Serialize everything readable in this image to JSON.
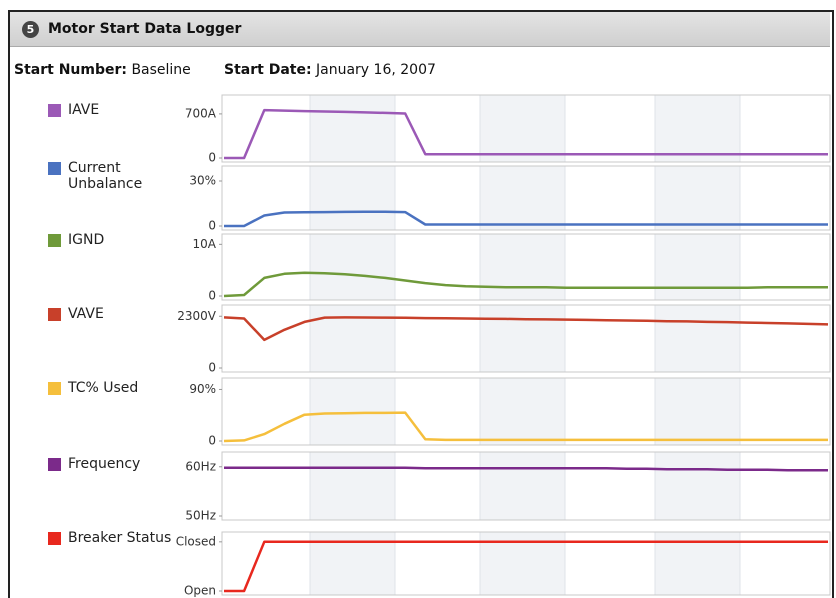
{
  "header": {
    "badge": "5",
    "title": "Motor Start Data Logger",
    "start_number_label": "Start Number:",
    "start_number": "Baseline",
    "start_date_label": "Start Date:",
    "start_date": "January 16, 2007"
  },
  "chart_data": [
    {
      "type": "line",
      "series": [
        {
          "name": "IAVE",
          "color": "#9b59b6",
          "values": [
            0,
            0,
            760,
            752,
            745,
            738,
            731,
            724,
            716,
            706,
            60,
            60,
            60,
            60,
            60,
            60,
            60,
            60,
            60,
            60,
            60,
            60,
            60,
            60,
            60,
            60,
            60,
            60,
            60,
            60,
            60
          ]
        }
      ],
      "ylim": [
        0,
        1000
      ],
      "yticks": [
        0,
        {
          "value": 700,
          "label": "700A"
        }
      ]
    },
    {
      "type": "line",
      "series": [
        {
          "name": "Current Unbalance",
          "color": "#4a72c0",
          "values": [
            0,
            0,
            7,
            9,
            9.2,
            9.3,
            9.4,
            9.5,
            9.5,
            9.3,
            1,
            1,
            1,
            1,
            1,
            1,
            1,
            1,
            1,
            1,
            1,
            1,
            1,
            1,
            1,
            1,
            1,
            1,
            1,
            1,
            1
          ]
        }
      ],
      "ylim": [
        0,
        40
      ],
      "yticks": [
        0,
        {
          "value": 30,
          "label": "30%"
        }
      ]
    },
    {
      "type": "line",
      "series": [
        {
          "name": "IGND",
          "color": "#6f9a3a",
          "values": [
            0,
            0.2,
            3.5,
            4.3,
            4.5,
            4.4,
            4.2,
            3.9,
            3.5,
            3.0,
            2.5,
            2.1,
            1.9,
            1.8,
            1.7,
            1.7,
            1.7,
            1.6,
            1.6,
            1.6,
            1.6,
            1.6,
            1.6,
            1.6,
            1.6,
            1.6,
            1.6,
            1.7,
            1.7,
            1.7,
            1.7
          ]
        }
      ],
      "ylim": [
        0,
        12
      ],
      "yticks": [
        0,
        {
          "value": 10,
          "label": "10A"
        }
      ]
    },
    {
      "type": "line",
      "series": [
        {
          "name": "VAVE",
          "color": "#c8402a",
          "values": [
            2250,
            2200,
            1250,
            1700,
            2050,
            2240,
            2250,
            2245,
            2240,
            2230,
            2220,
            2210,
            2200,
            2190,
            2180,
            2170,
            2160,
            2150,
            2140,
            2120,
            2110,
            2100,
            2080,
            2070,
            2050,
            2040,
            2020,
            2000,
            1980,
            1960,
            1940
          ]
        }
      ],
      "ylim": [
        0,
        2800
      ],
      "yticks": [
        0,
        {
          "value": 2300,
          "label": "2300V"
        }
      ]
    },
    {
      "type": "line",
      "series": [
        {
          "name": "TC% Used",
          "color": "#f5bf3c",
          "values": [
            0,
            1,
            12,
            30,
            46,
            48,
            48.5,
            49,
            49,
            49.5,
            3,
            2,
            2,
            2,
            2,
            2,
            2,
            2,
            2,
            2,
            2,
            2,
            2,
            2,
            2,
            2,
            2,
            2,
            2,
            2,
            2
          ]
        }
      ],
      "ylim": [
        0,
        110
      ],
      "yticks": [
        0,
        {
          "value": 90,
          "label": "90%"
        }
      ]
    },
    {
      "type": "line",
      "series": [
        {
          "name": "Frequency",
          "color": "#7b2a8a",
          "values": [
            59.8,
            59.8,
            59.8,
            59.8,
            59.8,
            59.8,
            59.8,
            59.8,
            59.8,
            59.8,
            59.7,
            59.7,
            59.7,
            59.7,
            59.7,
            59.7,
            59.7,
            59.7,
            59.7,
            59.7,
            59.6,
            59.6,
            59.5,
            59.5,
            59.5,
            59.4,
            59.4,
            59.4,
            59.3,
            59.3,
            59.3
          ]
        }
      ],
      "ylim": [
        50,
        63
      ],
      "yticks": [
        {
          "value": 50,
          "label": "50Hz"
        },
        {
          "value": 60,
          "label": "60Hz"
        }
      ]
    },
    {
      "type": "line",
      "series": [
        {
          "name": "Breaker Status",
          "color": "#e8281e",
          "values": [
            0,
            0,
            1,
            1,
            1,
            1,
            1,
            1,
            1,
            1,
            1,
            1,
            1,
            1,
            1,
            1,
            1,
            1,
            1,
            1,
            1,
            1,
            1,
            1,
            1,
            1,
            1,
            1,
            1,
            1,
            1
          ]
        }
      ],
      "ylim": [
        0,
        1.2
      ],
      "yticks": [
        {
          "value": 0,
          "label": "Open"
        },
        {
          "value": 1,
          "label": "Closed"
        }
      ]
    }
  ]
}
